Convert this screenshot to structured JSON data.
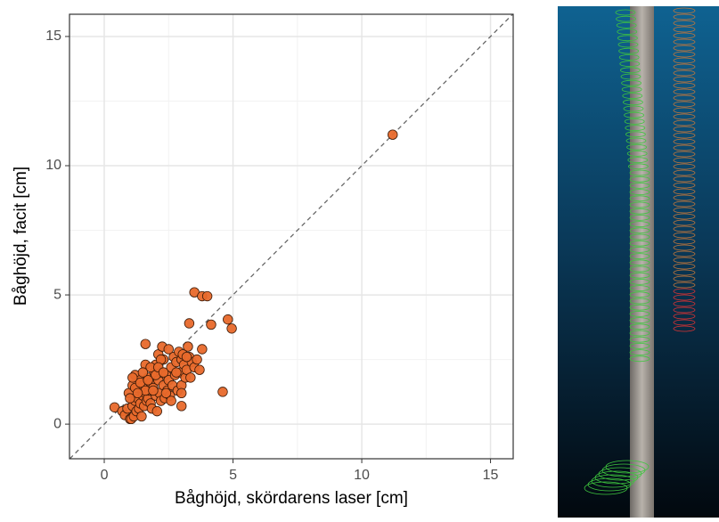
{
  "chart_data": {
    "type": "scatter",
    "x_label": "Båghöjd, skördarens laser [cm]",
    "y_label": "Båghöjd, facit [cm]",
    "x": [
      0.4,
      0.7,
      0.8,
      0.9,
      0.95,
      1.0,
      1.05,
      1.1,
      1.1,
      1.15,
      1.2,
      1.2,
      1.25,
      1.3,
      1.3,
      1.35,
      1.4,
      1.4,
      1.45,
      1.5,
      1.5,
      1.55,
      1.6,
      1.6,
      1.65,
      1.7,
      1.7,
      1.75,
      1.8,
      1.8,
      1.85,
      1.9,
      1.95,
      2.0,
      2.0,
      2.05,
      2.1,
      2.1,
      2.15,
      2.2,
      2.2,
      2.25,
      2.3,
      2.3,
      2.35,
      2.4,
      2.45,
      2.5,
      2.5,
      2.55,
      2.6,
      2.65,
      2.7,
      2.75,
      2.8,
      2.85,
      2.9,
      2.95,
      3.0,
      3.0,
      3.05,
      3.1,
      3.15,
      3.2,
      3.25,
      3.3,
      3.35,
      3.4,
      3.5,
      3.6,
      3.7,
      3.8,
      1.0,
      1.2,
      1.4,
      1.6,
      1.8,
      2.0,
      2.2,
      2.4,
      2.6,
      2.8,
      3.0,
      3.2,
      1.1,
      1.3,
      1.5,
      1.7,
      1.9,
      2.1,
      2.3,
      1.6,
      3.0,
      3.3,
      3.5,
      3.8,
      4.0,
      4.15,
      4.8,
      4.95,
      4.6,
      11.2
    ],
    "series": [
      {
        "color": "#e8692b",
        "values": [
          0.65,
          0.5,
          0.35,
          0.6,
          1.2,
          0.2,
          0.2,
          0.7,
          1.5,
          0.3,
          0.9,
          1.9,
          0.5,
          1.0,
          1.4,
          0.6,
          0.8,
          1.7,
          0.3,
          1.1,
          1.5,
          0.7,
          2.3,
          1.2,
          0.9,
          1.0,
          1.8,
          1.3,
          0.8,
          1.6,
          0.6,
          1.4,
          2.0,
          1.1,
          2.3,
          0.5,
          1.7,
          2.7,
          1.2,
          2.0,
          0.9,
          3.0,
          1.5,
          2.5,
          1.0,
          1.9,
          1.3,
          1.7,
          2.9,
          1.1,
          2.2,
          1.5,
          2.6,
          1.9,
          2.4,
          1.3,
          2.8,
          2.0,
          2.5,
          1.5,
          2.7,
          2.3,
          1.8,
          2.1,
          3.0,
          2.6,
          1.8,
          2.4,
          2.2,
          2.5,
          2.1,
          2.9,
          1.0,
          1.4,
          1.6,
          1.3,
          2.2,
          1.9,
          2.5,
          1.2,
          0.9,
          2.0,
          1.2,
          2.6,
          1.8,
          1.2,
          2.0,
          1.7,
          1.3,
          2.2,
          2.0,
          3.1,
          0.7,
          3.9,
          5.1,
          4.95,
          4.95,
          3.85,
          4.05,
          3.7,
          1.25,
          11.2
        ]
      }
    ],
    "xlim": [
      -1.35,
      15.88
    ],
    "ylim": [
      -1.34,
      15.86
    ],
    "xticks": [
      0,
      5,
      10,
      15
    ],
    "yticks": [
      0,
      5,
      10,
      15
    ],
    "minor_xticks": [
      2.5,
      7.5,
      12.5
    ],
    "minor_yticks": [
      2.5,
      7.5,
      12.5
    ],
    "grid": true,
    "identity_line": true
  }
}
